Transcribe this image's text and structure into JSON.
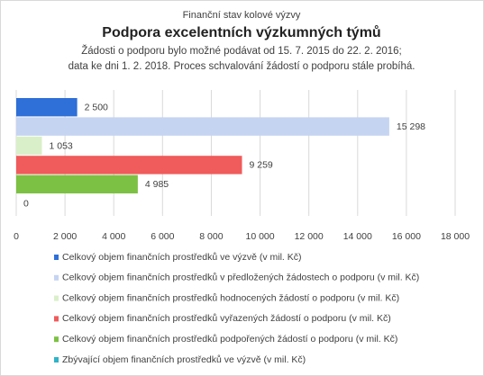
{
  "chart_data": {
    "type": "bar",
    "orientation": "horizontal",
    "supertitle": "Finanční stav kolové výzvy",
    "title": "Podpora excelentních výzkumných týmů",
    "subtitle": [
      "Žádosti o podporu bylo možné  podávat od 15. 7. 2015 do 22. 2. 2016;",
      "data ke dni 1. 2. 2018. Proces schvalování žádostí o podporu stále probíhá."
    ],
    "series": [
      {
        "name": "Celkový objem finančních prostředků ve výzvě (v mil. Kč)",
        "color": "#2e6fd8",
        "values": [
          2500
        ],
        "value_labels": [
          "2 500"
        ]
      },
      {
        "name": "Celkový objem finančních prostředků v předložených žádostech o podporu (v mil. Kč)",
        "color": "#c5d4f1",
        "values": [
          15298
        ],
        "value_labels": [
          "15 298"
        ]
      },
      {
        "name": "Celkový objem finančních prostředků hodnocených žádostí o podporu (v mil. Kč)",
        "color": "#d9efc9",
        "values": [
          1053
        ],
        "value_labels": [
          "1 053"
        ]
      },
      {
        "name": "Celkový objem finančních prostředků vyřazených žádostí o podporu (v mil. Kč)",
        "color": "#f05b5b",
        "values": [
          9259
        ],
        "value_labels": [
          "9 259"
        ]
      },
      {
        "name": "Celkový objem finančních prostředků podpořených žádostí o podporu (v mil. Kč)",
        "color": "#7cc143",
        "values": [
          4985
        ],
        "value_labels": [
          "4 985"
        ]
      },
      {
        "name": "Zbývající objem finančních prostředků ve výzvě (v mil. Kč)",
        "color": "#2fb4c8",
        "values": [
          0
        ]
      }
    ],
    "xlim": [
      0,
      18000
    ],
    "xticks": [
      0,
      {
        "value": 2000,
        "label": "2 000"
      },
      {
        "value": 4000,
        "label": "4 000"
      },
      {
        "value": 6000,
        "label": "6 000"
      },
      {
        "value": 8000,
        "label": "8 000"
      },
      {
        "value": 10000,
        "label": "10 000"
      },
      {
        "value": 12000,
        "label": "12 000"
      },
      {
        "value": 14000,
        "label": "14 000"
      },
      {
        "value": 16000,
        "label": "16 000"
      },
      {
        "value": 18000,
        "label": "18 000"
      }
    ],
    "grid": true,
    "legend": "bottom"
  }
}
